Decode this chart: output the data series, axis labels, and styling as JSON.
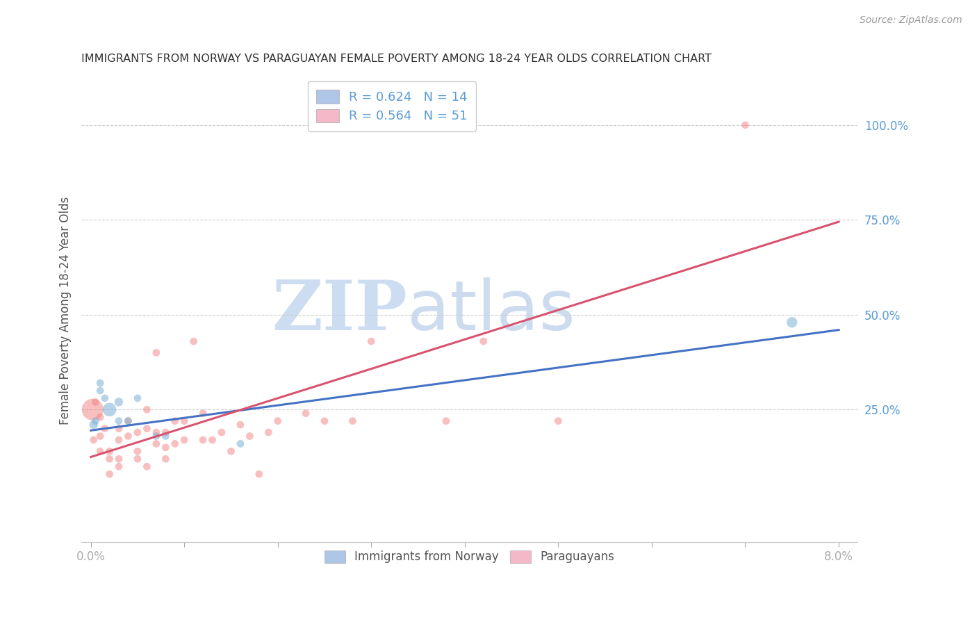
{
  "title": "IMMIGRANTS FROM NORWAY VS PARAGUAYAN FEMALE POVERTY AMONG 18-24 YEAR OLDS CORRELATION CHART",
  "source": "Source: ZipAtlas.com",
  "ylabel": "Female Poverty Among 18-24 Year Olds",
  "ytick_labels": [
    "100.0%",
    "75.0%",
    "50.0%",
    "25.0%"
  ],
  "ytick_values": [
    1.0,
    0.75,
    0.5,
    0.25
  ],
  "legend1_label": "R = 0.624   N = 14",
  "legend2_label": "R = 0.564   N = 51",
  "legend1_color": "#aec6e8",
  "legend2_color": "#f4b8c8",
  "series1_color": "#7bafd4",
  "series2_color": "#f08080",
  "trendline1_color": "#4472c4",
  "trendline2_color": "#d9526e",
  "watermark_zip": "ZIP",
  "watermark_atlas": "atlas",
  "watermark_color": "#c8d8f0",
  "blue_scatter_x": [
    0.0003,
    0.0005,
    0.001,
    0.001,
    0.0015,
    0.002,
    0.003,
    0.003,
    0.004,
    0.005,
    0.007,
    0.008,
    0.016,
    0.075
  ],
  "blue_scatter_y": [
    0.21,
    0.22,
    0.3,
    0.32,
    0.28,
    0.25,
    0.27,
    0.22,
    0.22,
    0.28,
    0.18,
    0.18,
    0.16,
    0.48
  ],
  "blue_scatter_size": [
    80,
    60,
    60,
    60,
    60,
    200,
    80,
    60,
    60,
    60,
    60,
    60,
    60,
    120
  ],
  "pink_scatter_x": [
    0.0002,
    0.0003,
    0.0005,
    0.001,
    0.001,
    0.001,
    0.0015,
    0.002,
    0.002,
    0.002,
    0.003,
    0.003,
    0.003,
    0.003,
    0.004,
    0.004,
    0.005,
    0.005,
    0.005,
    0.006,
    0.006,
    0.006,
    0.007,
    0.007,
    0.007,
    0.008,
    0.008,
    0.008,
    0.009,
    0.009,
    0.01,
    0.01,
    0.011,
    0.012,
    0.012,
    0.013,
    0.014,
    0.015,
    0.016,
    0.017,
    0.018,
    0.019,
    0.02,
    0.023,
    0.025,
    0.028,
    0.03,
    0.038,
    0.042,
    0.05,
    0.07
  ],
  "pink_scatter_y": [
    0.25,
    0.17,
    0.27,
    0.23,
    0.18,
    0.14,
    0.2,
    0.14,
    0.08,
    0.12,
    0.12,
    0.17,
    0.2,
    0.1,
    0.22,
    0.18,
    0.14,
    0.19,
    0.12,
    0.25,
    0.2,
    0.1,
    0.4,
    0.19,
    0.16,
    0.19,
    0.15,
    0.12,
    0.22,
    0.16,
    0.17,
    0.22,
    0.43,
    0.24,
    0.17,
    0.17,
    0.19,
    0.14,
    0.21,
    0.18,
    0.08,
    0.19,
    0.22,
    0.24,
    0.22,
    0.22,
    0.43,
    0.22,
    0.43,
    0.22,
    1.0
  ],
  "pink_scatter_size": [
    500,
    60,
    60,
    60,
    60,
    60,
    60,
    60,
    60,
    60,
    60,
    60,
    60,
    60,
    60,
    60,
    60,
    60,
    60,
    60,
    60,
    60,
    60,
    60,
    60,
    60,
    60,
    60,
    60,
    60,
    60,
    60,
    60,
    60,
    60,
    60,
    60,
    60,
    60,
    60,
    60,
    60,
    60,
    60,
    60,
    60,
    60,
    60,
    60,
    60,
    60
  ],
  "blue_line_x": [
    0.0,
    0.08
  ],
  "blue_line_y": [
    0.195,
    0.46
  ],
  "pink_line_x": [
    0.0,
    0.08
  ],
  "pink_line_y": [
    0.125,
    0.745
  ],
  "xlim": [
    -0.001,
    0.082
  ],
  "ylim": [
    -0.1,
    1.12
  ],
  "background_color": "#ffffff",
  "grid_color": "#cccccc",
  "title_color": "#333333",
  "axis_tick_color": "#5b9bd5",
  "right_axis_color": "#5b9bd5",
  "xtick_positions": [
    0.0,
    0.01,
    0.02,
    0.03,
    0.04,
    0.05,
    0.06,
    0.07,
    0.08
  ],
  "xtick_labels_visible": [
    "0.0%",
    "",
    "",
    "",
    "",
    "",
    "",
    "",
    "8.0%"
  ]
}
